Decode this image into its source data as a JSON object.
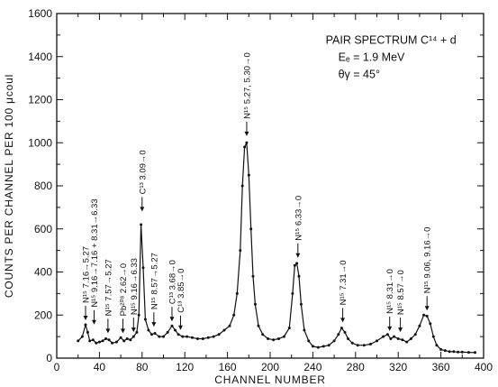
{
  "chart_data": {
    "type": "line",
    "title_lines": [
      "PAIR SPECTRUM C¹⁴ + d",
      "Eₑ = 1.9 MeV",
      "θγ = 45°"
    ],
    "xlabel": "CHANNEL NUMBER",
    "ylabel": "COUNTS PER CHANNEL PER 100 μcoul",
    "xlim": [
      0,
      400
    ],
    "ylim": [
      0,
      1600
    ],
    "xticks": [
      0,
      40,
      80,
      120,
      160,
      200,
      240,
      280,
      320,
      360,
      400
    ],
    "yticks": [
      0,
      200,
      400,
      600,
      800,
      1000,
      1200,
      1400,
      1600
    ],
    "grid": false,
    "series": [
      {
        "x": [
          20,
          24,
          27,
          29,
          31,
          34,
          37,
          40,
          43,
          46,
          49,
          52,
          56,
          60,
          63,
          66,
          69,
          72,
          75,
          77,
          79,
          81,
          83,
          86,
          89,
          92,
          96,
          100,
          104,
          108,
          111,
          114,
          118,
          122,
          127,
          132,
          137,
          142,
          147,
          152,
          157,
          162,
          166,
          169,
          172,
          174,
          176,
          178,
          180,
          182,
          184,
          186,
          189,
          193,
          198,
          203,
          208,
          213,
          218,
          221,
          223,
          225,
          227,
          229,
          232,
          236,
          240,
          245,
          250,
          255,
          260,
          264,
          267,
          270,
          273,
          277,
          282,
          288,
          294,
          300,
          306,
          310,
          313,
          316,
          320,
          324,
          328,
          332,
          336,
          340,
          344,
          347,
          350,
          353,
          356,
          360,
          364,
          368,
          372,
          376,
          380,
          386,
          392
        ],
        "y": [
          80,
          100,
          155,
          120,
          80,
          85,
          70,
          75,
          80,
          90,
          85,
          70,
          75,
          95,
          80,
          90,
          85,
          100,
          120,
          200,
          620,
          420,
          180,
          130,
          110,
          115,
          100,
          100,
          120,
          150,
          130,
          110,
          100,
          100,
          95,
          90,
          90,
          95,
          100,
          110,
          130,
          150,
          200,
          300,
          500,
          800,
          980,
          1000,
          850,
          600,
          380,
          250,
          150,
          110,
          90,
          85,
          90,
          100,
          140,
          300,
          430,
          440,
          380,
          250,
          130,
          80,
          55,
          50,
          55,
          60,
          80,
          110,
          140,
          120,
          90,
          70,
          60,
          60,
          65,
          80,
          100,
          110,
          90,
          100,
          90,
          85,
          75,
          90,
          110,
          150,
          200,
          195,
          160,
          100,
          60,
          40,
          35,
          30,
          30,
          28,
          28,
          27,
          26
        ]
      }
    ],
    "annotations": [
      {
        "label": "N¹⁵ 7.16→5.27",
        "x": 27,
        "y": 155
      },
      {
        "label": "N¹⁵ 9.16→7.16 + 8.31→6.33",
        "x": 35,
        "y": 135
      },
      {
        "label": "N¹⁵ 7.57→5.27",
        "x": 48,
        "y": 95
      },
      {
        "label": "Pb²⁰⁸ 2.62→0",
        "x": 62,
        "y": 95
      },
      {
        "label": "N¹⁵ 9.16→6.33",
        "x": 72,
        "y": 100
      },
      {
        "label": "C¹³ 3.09→0",
        "x": 80,
        "y": 660
      },
      {
        "label": "N¹⁵ 8.57→5.27",
        "x": 91,
        "y": 125
      },
      {
        "label": "C¹³ 3.68→0",
        "x": 108,
        "y": 150
      },
      {
        "label": "C¹³ 3.85→0",
        "x": 116,
        "y": 110
      },
      {
        "label": "N¹⁵ 5.27, 5.30→0",
        "x": 178,
        "y": 1010
      },
      {
        "label": "N¹⁵ 6.33→0",
        "x": 226,
        "y": 445
      },
      {
        "label": "N¹⁵ 7.31→0",
        "x": 268,
        "y": 145
      },
      {
        "label": "N¹⁵ 8.31→0",
        "x": 312,
        "y": 105
      },
      {
        "label": "N¹⁵ 8.57→0",
        "x": 322,
        "y": 100
      },
      {
        "label": "N¹⁵ 9.06, 9.16→0",
        "x": 347,
        "y": 200
      }
    ]
  }
}
